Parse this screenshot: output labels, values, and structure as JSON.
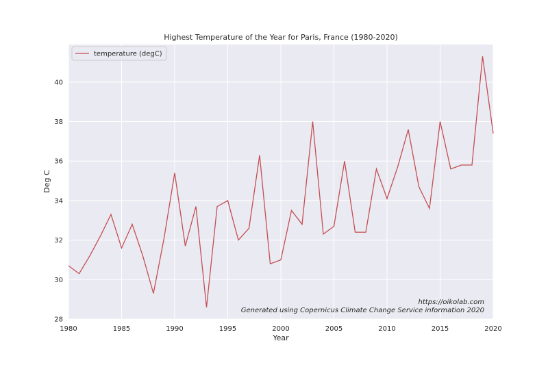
{
  "chart_data": {
    "type": "line",
    "title": "Highest Temperature of the Year for Paris, France (1980-2020)",
    "xlabel": "Year",
    "ylabel": "Deg C",
    "xlim": [
      1980,
      2020
    ],
    "ylim": [
      28,
      41.9
    ],
    "x_ticks": [
      1980,
      1985,
      1990,
      1995,
      2000,
      2005,
      2010,
      2015,
      2020
    ],
    "y_ticks": [
      28,
      30,
      32,
      34,
      36,
      38,
      40
    ],
    "grid": true,
    "legend_position": "top-left",
    "annotations": [
      "https://oikolab.com",
      "Generated using Copernicus Climate Change Service information 2020"
    ],
    "series": [
      {
        "name": "temperature (degC)",
        "color": "#c44e52",
        "x": [
          1980,
          1981,
          1982,
          1983,
          1984,
          1985,
          1986,
          1987,
          1988,
          1989,
          1990,
          1991,
          1992,
          1993,
          1994,
          1995,
          1996,
          1997,
          1998,
          1999,
          2000,
          2001,
          2002,
          2003,
          2004,
          2005,
          2006,
          2007,
          2008,
          2009,
          2010,
          2011,
          2012,
          2013,
          2014,
          2015,
          2016,
          2017,
          2018,
          2019,
          2020
        ],
        "values": [
          30.7,
          30.3,
          31.2,
          32.2,
          33.3,
          31.6,
          32.8,
          31.2,
          29.3,
          32.1,
          35.4,
          31.7,
          33.7,
          28.6,
          33.7,
          34.0,
          32.0,
          32.6,
          36.3,
          30.8,
          31.0,
          33.5,
          32.8,
          38.0,
          32.3,
          32.7,
          36.0,
          32.4,
          32.4,
          35.6,
          34.1,
          35.7,
          37.6,
          34.7,
          33.6,
          38.0,
          35.6,
          35.8,
          35.8,
          41.3,
          37.4
        ]
      }
    ]
  },
  "style": {
    "plot_background": "#eaeaf2",
    "grid_color": "#ffffff",
    "line_color": "#c44e52"
  }
}
